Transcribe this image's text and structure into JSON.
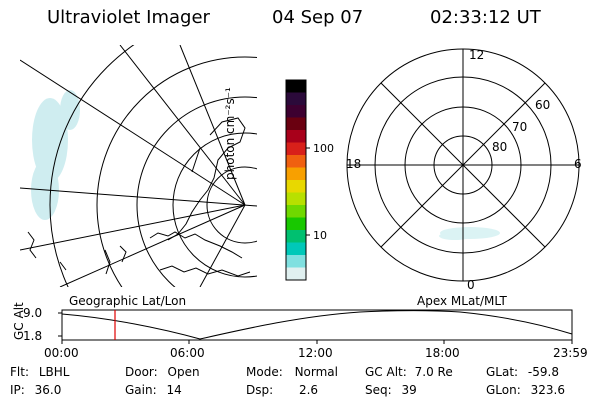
{
  "header": {
    "instrument": "Ultraviolet Imager",
    "date": "04 Sep 07",
    "time": "02:33:12 UT"
  },
  "colorbar": {
    "unit_label": "photon cm⁻²s⁻¹",
    "ticks": [
      "100",
      "10"
    ],
    "colors": [
      "#000000",
      "#2b0a3a",
      "#3d0030",
      "#6a0010",
      "#a8001a",
      "#d8201a",
      "#f06010",
      "#f8a000",
      "#e8d800",
      "#b8e000",
      "#70d800",
      "#18c800",
      "#00c070",
      "#00c8b8",
      "#80e0e0",
      "#e0f0f0"
    ]
  },
  "polar": {
    "mlt_labels": {
      "top": "12",
      "left": "18",
      "right": "6",
      "bottom": "0"
    },
    "lat_labels": [
      "60",
      "70",
      "80"
    ]
  },
  "map_labels": {
    "left": "Geographic Lat/Lon",
    "right": "Apex MLat/MLT"
  },
  "orbit_plot": {
    "ylabel": "GC Alt",
    "ytick_top": "9.0",
    "ytick_bottom": "1.8",
    "x_ticks": [
      "00:00",
      "06:00",
      "12:00",
      "18:00",
      "23:59"
    ],
    "marker_color": "#e00000"
  },
  "status": {
    "flt_label": "Flt:",
    "flt_value": "LBHL",
    "ip_label": "IP:",
    "ip_value": "36.0",
    "door_label": "Door:",
    "door_value": "Open",
    "gain_label": "Gain:",
    "gain_value": "14",
    "mode_label": "Mode:",
    "mode_value": "Normal",
    "dsp_label": "Dsp:",
    "dsp_value": "2.6",
    "gcalt_label": "GC Alt:",
    "gcalt_value": "7.0 Re",
    "seq_label": "Seq:",
    "seq_value": "39",
    "glat_label": "GLat:",
    "glat_value": "-59.8",
    "glon_label": "GLon:",
    "glon_value": "323.6"
  }
}
